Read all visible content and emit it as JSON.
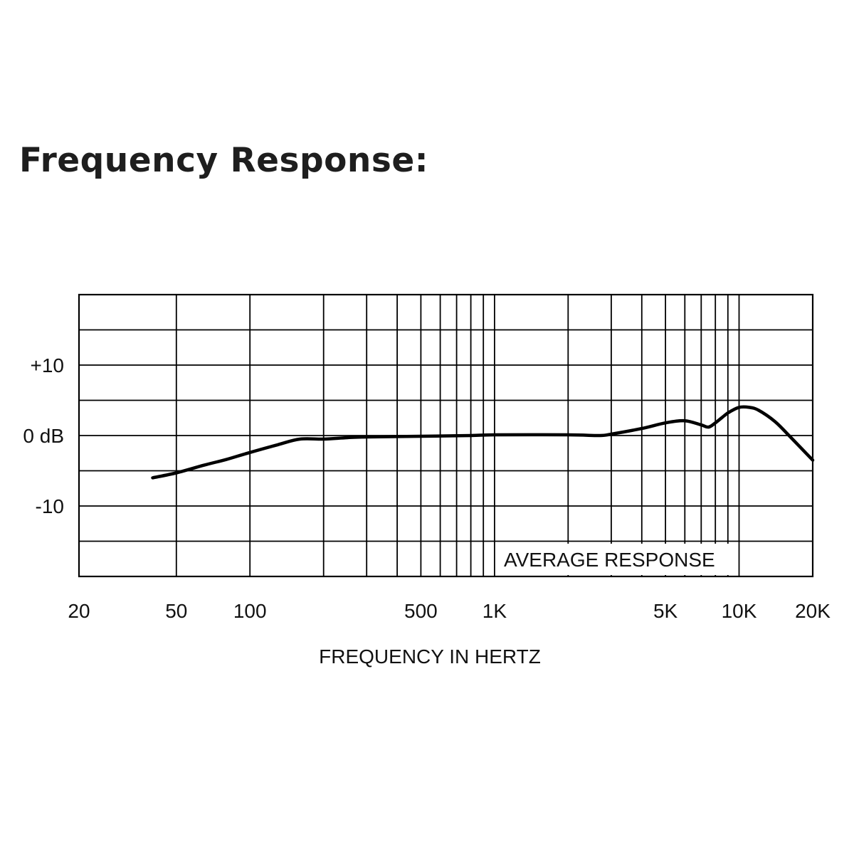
{
  "heading": "Frequency Response:",
  "colors": {
    "background": "#ffffff",
    "ink": "#000000",
    "heading": "#1e1e1e"
  },
  "chart_data": {
    "type": "line",
    "title": "",
    "xlabel": "FREQUENCY IN HERTZ",
    "ylabel": "",
    "x_scale": "log",
    "xlim": [
      20,
      20000
    ],
    "ylim": [
      -20,
      20
    ],
    "x_ticks": [
      {
        "value": 20,
        "label": "20"
      },
      {
        "value": 50,
        "label": "50"
      },
      {
        "value": 100,
        "label": "100"
      },
      {
        "value": 500,
        "label": "500"
      },
      {
        "value": 1000,
        "label": "1K"
      },
      {
        "value": 5000,
        "label": "5K"
      },
      {
        "value": 10000,
        "label": "10K"
      },
      {
        "value": 20000,
        "label": "20K"
      }
    ],
    "y_ticks": [
      {
        "value": 10,
        "label": "+10"
      },
      {
        "value": 0,
        "label": "0 dB"
      },
      {
        "value": -10,
        "label": "-10"
      }
    ],
    "x_gridlines": [
      20,
      50,
      100,
      200,
      300,
      400,
      500,
      600,
      700,
      800,
      900,
      1000,
      2000,
      3000,
      4000,
      5000,
      6000,
      7000,
      8000,
      9000,
      10000,
      20000
    ],
    "y_gridlines": [
      -20,
      -15,
      -10,
      -5,
      0,
      5,
      10,
      15,
      20
    ],
    "grid": true,
    "legend": "none",
    "annotation": "AVERAGE RESPONSE",
    "series": [
      {
        "x": [
          40,
          50,
          65,
          80,
          100,
          130,
          160,
          200,
          250,
          300,
          500,
          800,
          1000,
          2000,
          2700,
          3000,
          4000,
          5000,
          6000,
          7000,
          7500,
          8000,
          9000,
          10000,
          11000,
          12000,
          14000,
          16000,
          20000
        ],
        "y": [
          -6,
          -5.3,
          -4.2,
          -3.4,
          -2.4,
          -1.3,
          -0.5,
          -0.5,
          -0.3,
          -0.2,
          -0.1,
          0,
          0.1,
          0.1,
          0,
          0.2,
          1.0,
          1.8,
          2.1,
          1.5,
          1.2,
          1.8,
          3.2,
          4.0,
          4.0,
          3.6,
          2.0,
          0,
          -3.5
        ]
      }
    ]
  }
}
